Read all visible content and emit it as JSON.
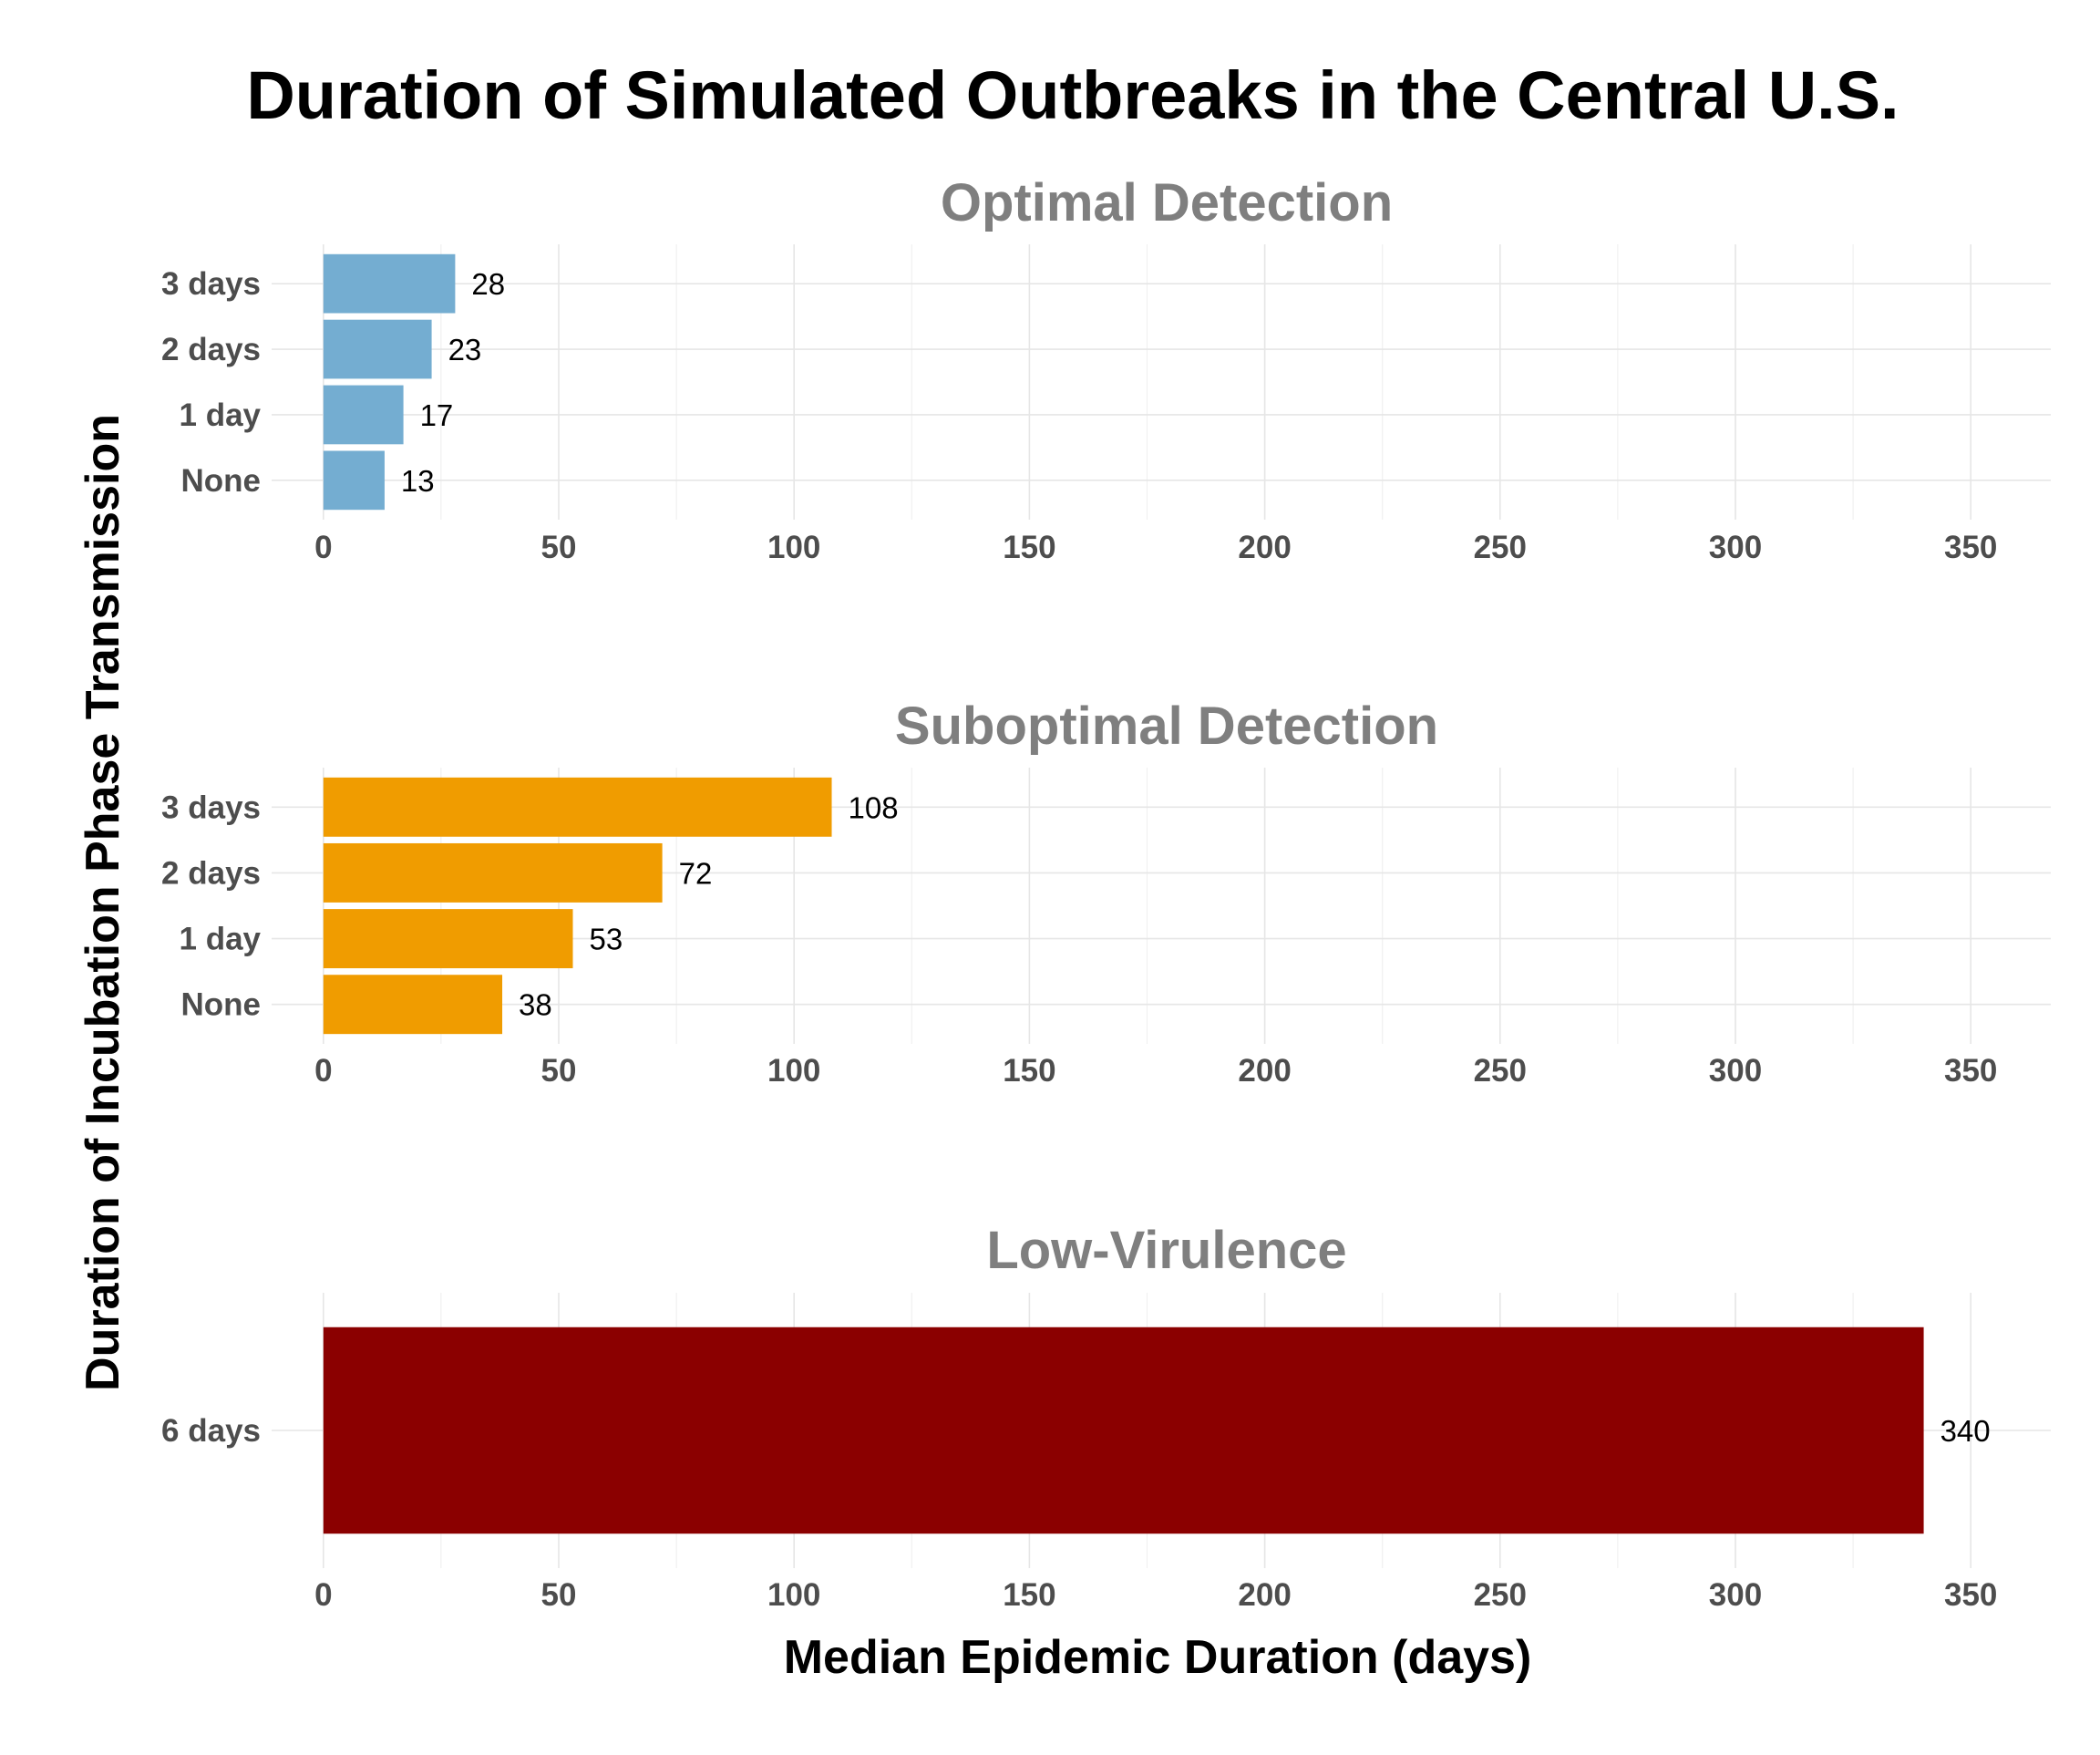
{
  "title": "Duration of Simulated Outbreaks in the Central U.S.",
  "xlabel": "Median Epidemic Duration (days)",
  "ylabel": "Duration of Incubation Phase Transmission",
  "chart_data": [
    {
      "type": "bar",
      "orientation": "horizontal",
      "title": "Optimal Detection",
      "categories": [
        "None",
        "1 day",
        "2 days",
        "3 days"
      ],
      "values": [
        13,
        17,
        23,
        28
      ],
      "color": "#74ADD1",
      "xlim": [
        0,
        365
      ],
      "xticks": [
        0,
        50,
        100,
        150,
        200,
        250,
        300,
        350
      ],
      "grid": true
    },
    {
      "type": "bar",
      "orientation": "horizontal",
      "title": "Suboptimal Detection",
      "categories": [
        "None",
        "1 day",
        "2 days",
        "3 days"
      ],
      "values": [
        38,
        53,
        72,
        108
      ],
      "color": "#F09C00",
      "xlim": [
        0,
        365
      ],
      "xticks": [
        0,
        50,
        100,
        150,
        200,
        250,
        300,
        350
      ],
      "grid": true
    },
    {
      "type": "bar",
      "orientation": "horizontal",
      "title": "Low-Virulence",
      "categories": [
        "6 days"
      ],
      "values": [
        340
      ],
      "color": "#8B0000",
      "xlim": [
        0,
        365
      ],
      "xticks": [
        0,
        50,
        100,
        150,
        200,
        250,
        300,
        350
      ],
      "grid": true
    }
  ]
}
